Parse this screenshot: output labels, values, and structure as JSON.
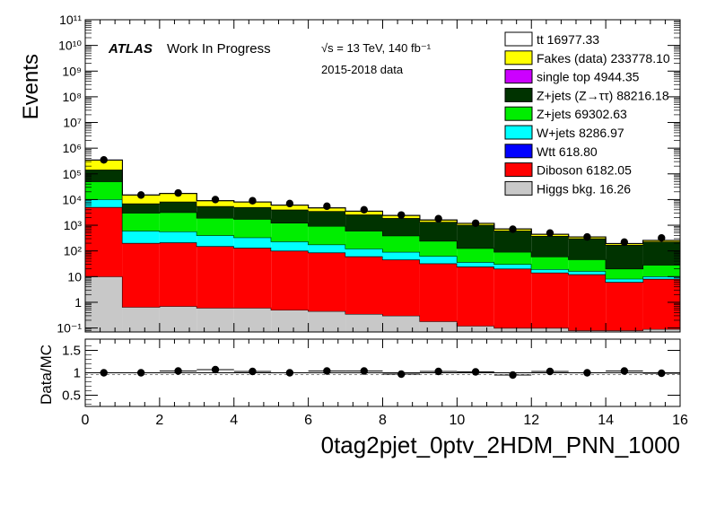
{
  "chart_data": [
    {
      "type": "area",
      "subtype": "stacked-histogram",
      "ylabel": "Events",
      "yscale": "log",
      "xlim": [
        0,
        16
      ],
      "ylim": [
        0.07,
        100000000000
      ],
      "ytick_labels": [
        "10⁻¹",
        "1",
        "10",
        "10²",
        "10³",
        "10⁴",
        "10⁵",
        "10⁶",
        "10⁷",
        "10⁸",
        "10⁹",
        "10¹⁰",
        "10¹¹"
      ],
      "atlas_label": "ATLAS",
      "atlas_sub": "Work In Progress",
      "energy_label": "√s = 13 TeV, 140 fb⁻¹",
      "data_label": "2015-2018 data",
      "legend_position": "top-right",
      "bin_edges": [
        0,
        1,
        2,
        3,
        4,
        5,
        6,
        7,
        8,
        9,
        10,
        11,
        12,
        13,
        14,
        15,
        16
      ],
      "series_stack_order_bottom_to_top": [
        "Higgs bkg.",
        "Diboson",
        "Wtt",
        "W+jets",
        "Z+jets",
        "Z+jets (Z→ττ)",
        "single top",
        "Fakes (data)",
        "tt"
      ],
      "series": [
        {
          "key": "higgs",
          "name": "Higgs bkg.",
          "color": "#c8c8c8",
          "values": [
            10,
            0.65,
            0.7,
            0.6,
            0.6,
            0.5,
            0.45,
            0.35,
            0.3,
            0.18,
            0.12,
            0.1,
            0.1,
            0.08,
            0.08,
            0.09
          ]
        },
        {
          "key": "diboson",
          "name": "Diboson",
          "color": "#ff0000",
          "values": [
            5000,
            200,
            210,
            150,
            130,
            100,
            85,
            60,
            45,
            32,
            24,
            20,
            14,
            12,
            6,
            8
          ]
        },
        {
          "key": "wtt",
          "name": "Wtt",
          "color": "#0000ff",
          "values": [
            80,
            3,
            3,
            2.5,
            2,
            1.5,
            1.2,
            1,
            0.8,
            0.5,
            0.4,
            0.3,
            0.2,
            0.2,
            0.1,
            0.1
          ]
        },
        {
          "key": "wjets",
          "name": "W+jets",
          "color": "#00ffff",
          "values": [
            5000,
            400,
            350,
            250,
            200,
            130,
            90,
            60,
            45,
            30,
            12,
            10,
            5,
            4,
            2,
            2
          ]
        },
        {
          "key": "zjets",
          "name": "Z+jets",
          "color": "#00ee00",
          "values": [
            40000,
            2400,
            2600,
            1500,
            1400,
            1000,
            750,
            480,
            300,
            180,
            90,
            60,
            40,
            30,
            12,
            18
          ]
        },
        {
          "key": "zjets_tautau",
          "name": "Z+jets (Z→ττ)",
          "color": "#003300",
          "values": [
            95000,
            4000,
            5100,
            3600,
            3300,
            2800,
            2600,
            2000,
            1500,
            1100,
            900,
            520,
            320,
            260,
            150,
            200
          ]
        },
        {
          "key": "singletop",
          "name": "single top",
          "color": "#cc00ff",
          "values": [
            400,
            30,
            25,
            20,
            18,
            15,
            12,
            10,
            8,
            6,
            5,
            4,
            3,
            2,
            2,
            2
          ]
        },
        {
          "key": "fakes",
          "name": "Fakes (data)",
          "color": "#ffff00",
          "values": [
            200000,
            8000,
            9000,
            3500,
            3000,
            2000,
            1200,
            900,
            500,
            250,
            150,
            100,
            60,
            40,
            20,
            25
          ]
        },
        {
          "key": "ttbar",
          "name": "tt",
          "color": "#ffffff",
          "values": [
            400,
            40,
            40,
            30,
            28,
            20,
            18,
            15,
            10,
            8,
            6,
            5,
            3,
            3,
            2,
            2
          ]
        }
      ],
      "data_points": {
        "x": [
          0.5,
          1.5,
          2.5,
          3.5,
          4.5,
          5.5,
          6.5,
          7.5,
          8.5,
          9.5,
          10.5,
          11.5,
          12.5,
          13.5,
          14.5,
          15.5
        ],
        "y": [
          350000,
          15000,
          18000,
          10000,
          9000,
          7000,
          5500,
          4000,
          2500,
          1800,
          1200,
          700,
          500,
          350,
          220,
          320
        ]
      },
      "legend": [
        {
          "label": "tt 16977.33",
          "key": "ttbar"
        },
        {
          "label": "Fakes (data) 233778.10",
          "key": "fakes"
        },
        {
          "label": "single top 4944.35",
          "key": "singletop"
        },
        {
          "label": "Z+jets (Z→ττ) 88216.18",
          "key": "zjets_tautau"
        },
        {
          "label": "Z+jets 69302.63",
          "key": "zjets"
        },
        {
          "label": "W+jets 8286.97",
          "key": "wjets"
        },
        {
          "label": "Wtt 618.80",
          "key": "wtt"
        },
        {
          "label": "Diboson 6182.05",
          "key": "diboson"
        },
        {
          "label": "Higgs bkg. 16.26",
          "key": "higgs"
        }
      ]
    },
    {
      "type": "scatter",
      "subtype": "ratio",
      "ylabel": "Data/MC",
      "xlabel": "0tag2pjet_0ptv_2HDM_PNN_1000",
      "xlim": [
        0,
        16
      ],
      "ylim": [
        0.25,
        1.75
      ],
      "xticks": [
        0,
        2,
        4,
        6,
        8,
        10,
        12,
        14,
        16
      ],
      "yticks": [
        0.5,
        1,
        1.5
      ],
      "reference_line": 1,
      "x": [
        0.5,
        1.5,
        2.5,
        3.5,
        4.5,
        5.5,
        6.5,
        7.5,
        8.5,
        9.5,
        10.5,
        11.5,
        12.5,
        13.5,
        14.5,
        15.5
      ],
      "y": [
        1.0,
        1.0,
        1.04,
        1.07,
        1.03,
        1.0,
        1.04,
        1.04,
        0.97,
        1.03,
        1.02,
        0.95,
        1.03,
        1.0,
        1.04,
        0.99
      ]
    }
  ]
}
